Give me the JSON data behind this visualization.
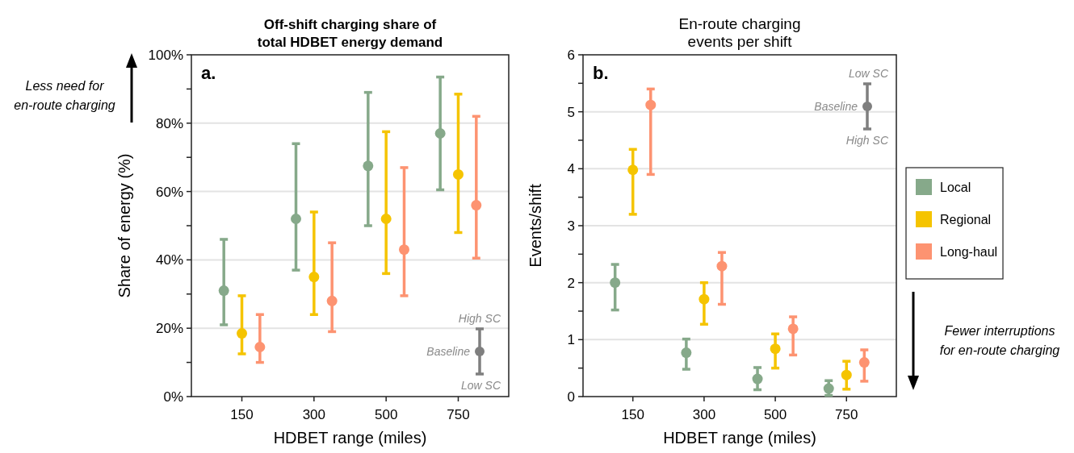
{
  "chart_data": [
    {
      "type": "scatter",
      "title": "Off-shift charging share of\ntotal HDBET energy demand",
      "xlabel": "HDBET range (miles)",
      "ylabel": "Share of energy (%)",
      "categories": [
        "150",
        "300",
        "500",
        "750"
      ],
      "ylim": [
        0,
        100
      ],
      "yticks": [
        {
          "value": 0,
          "label": "0%"
        },
        {
          "value": 10,
          "label": null
        },
        {
          "value": 20,
          "label": "20%"
        },
        {
          "value": 30,
          "label": null
        },
        {
          "value": 40,
          "label": "40%"
        },
        {
          "value": 50,
          "label": null
        },
        {
          "value": 60,
          "label": "60%"
        },
        {
          "value": 70,
          "label": null
        },
        {
          "value": 80,
          "label": "80%"
        },
        {
          "value": 90,
          "label": null
        },
        {
          "value": 100,
          "label": "100%"
        }
      ],
      "grid": "y",
      "legend": false,
      "marker": "circle",
      "series": [
        {
          "color": "#86a98a",
          "values": [
            31,
            52,
            67.5,
            77
          ],
          "errors": [
            [
              21,
              46
            ],
            [
              37,
              74
            ],
            [
              50,
              89
            ],
            [
              60.5,
              93.5
            ]
          ]
        },
        {
          "color": "#f5c400",
          "values": [
            18.5,
            35,
            52,
            65
          ],
          "errors": [
            [
              12.5,
              29.5
            ],
            [
              24,
              54
            ],
            [
              36,
              77.5
            ],
            [
              48,
              88.5
            ]
          ]
        },
        {
          "color": "#fd9371",
          "values": [
            14.5,
            28,
            43,
            56
          ],
          "errors": [
            [
              10,
              24
            ],
            [
              19,
              45
            ],
            [
              29.5,
              67
            ],
            [
              40.5,
              82
            ]
          ]
        }
      ],
      "annotations": [
        "a.",
        "High SC",
        "Baseline",
        "Low SC",
        "Less need for en-route charging"
      ]
    },
    {
      "type": "scatter",
      "title": "En-route charging\nevents per shift",
      "xlabel": "HDBET range (miles)",
      "ylabel": "Events/shift",
      "categories": [
        "150",
        "300",
        "500",
        "750"
      ],
      "ylim": [
        0,
        6
      ],
      "yticks": [
        0,
        {
          "value": 0.5,
          "label": null
        },
        1,
        {
          "value": 1.5,
          "label": null
        },
        2,
        {
          "value": 2.5,
          "label": null
        },
        3,
        {
          "value": 3.5,
          "label": null
        },
        4,
        {
          "value": 4.5,
          "label": null
        },
        5,
        {
          "value": 5.5,
          "label": null
        },
        6
      ],
      "grid": "y",
      "legend": "right",
      "marker": "circle",
      "series": [
        {
          "name": "Local",
          "color": "#86a98a",
          "values": [
            2.0,
            0.77,
            0.31,
            0.14
          ],
          "errors": [
            [
              1.52,
              2.32
            ],
            [
              0.48,
              1.01
            ],
            [
              0.12,
              0.51
            ],
            [
              0.02,
              0.28
            ]
          ]
        },
        {
          "name": "Regional",
          "color": "#f5c400",
          "values": [
            3.98,
            1.71,
            0.84,
            0.38
          ],
          "errors": [
            [
              3.2,
              4.34
            ],
            [
              1.27,
              2.0
            ],
            [
              0.5,
              1.1
            ],
            [
              0.13,
              0.62
            ]
          ]
        },
        {
          "name": "Long-haul",
          "color": "#fd9371",
          "values": [
            5.12,
            2.29,
            1.19,
            0.6
          ],
          "errors": [
            [
              3.9,
              5.4
            ],
            [
              1.62,
              2.53
            ],
            [
              0.73,
              1.4
            ],
            [
              0.27,
              0.82
            ]
          ]
        }
      ],
      "annotations": [
        "b.",
        "Low SC",
        "Baseline",
        "High SC",
        "Fewer interruptions for en-route charging"
      ]
    }
  ]
}
